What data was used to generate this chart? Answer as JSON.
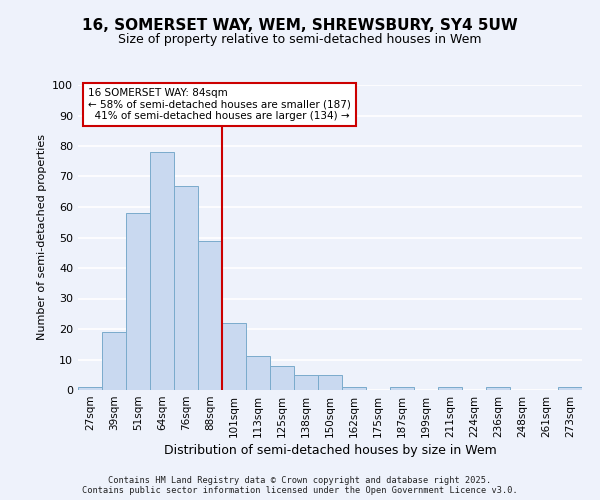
{
  "title_line1": "16, SOMERSET WAY, WEM, SHREWSBURY, SY4 5UW",
  "title_line2": "Size of property relative to semi-detached houses in Wem",
  "xlabel": "Distribution of semi-detached houses by size in Wem",
  "ylabel": "Number of semi-detached properties",
  "categories": [
    "27sqm",
    "39sqm",
    "51sqm",
    "64sqm",
    "76sqm",
    "88sqm",
    "101sqm",
    "113sqm",
    "125sqm",
    "138sqm",
    "150sqm",
    "162sqm",
    "175sqm",
    "187sqm",
    "199sqm",
    "211sqm",
    "224sqm",
    "236sqm",
    "248sqm",
    "261sqm",
    "273sqm"
  ],
  "values": [
    1,
    19,
    58,
    78,
    67,
    49,
    22,
    11,
    8,
    5,
    5,
    1,
    0,
    1,
    0,
    1,
    0,
    1,
    0,
    0,
    1
  ],
  "bar_color": "#c9d9f0",
  "bar_edge_color": "#7aabcc",
  "background_color": "#eef2fb",
  "grid_color": "#ffffff",
  "ylim": [
    0,
    100
  ],
  "yticks": [
    0,
    10,
    20,
    30,
    40,
    50,
    60,
    70,
    80,
    90,
    100
  ],
  "vline_color": "#cc0000",
  "annotation_text": "16 SOMERSET WAY: 84sqm\n← 58% of semi-detached houses are smaller (187)\n  41% of semi-detached houses are larger (134) →",
  "annotation_box_color": "#ffffff",
  "annotation_box_edge": "#cc0000",
  "footnote1": "Contains HM Land Registry data © Crown copyright and database right 2025.",
  "footnote2": "Contains public sector information licensed under the Open Government Licence v3.0."
}
